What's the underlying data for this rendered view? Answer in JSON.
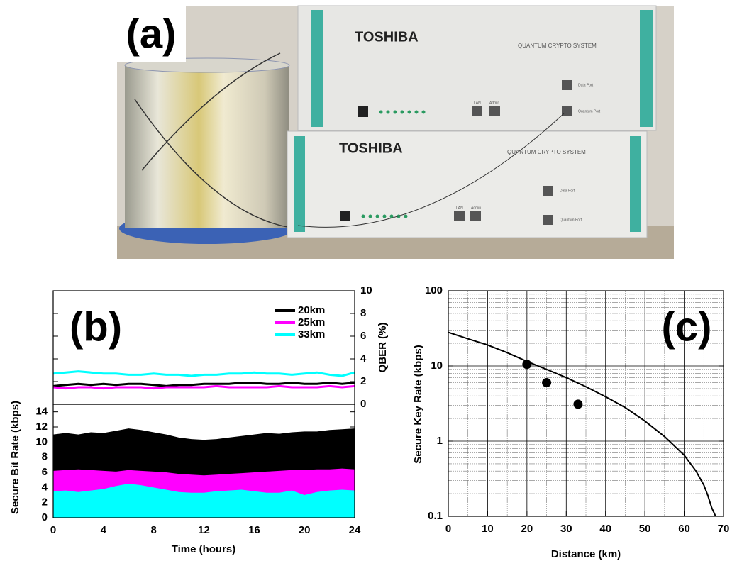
{
  "photo": {
    "panel_label": "(a)",
    "units": [
      {
        "brand": "TOSHIBA",
        "product": "QUANTUM CRYPTO SYSTEM",
        "data_port": "Data Port",
        "quantum_port": "Quantum Port",
        "lan": "LAN",
        "admin": "Admin"
      },
      {
        "brand": "TOSHIBA",
        "product": "QUANTUM CRYPTO SYSTEM",
        "data_port": "Data Port",
        "quantum_port": "Quantum Port",
        "lan": "LAN",
        "admin": "Admin"
      }
    ]
  },
  "chart_data": [
    {
      "type": "line",
      "annotation": "(b)",
      "ylabel": "QBER (%)",
      "y_axis_side": "right",
      "xlim": [
        0,
        24
      ],
      "ylim": [
        0,
        10
      ],
      "yticks": [
        0,
        2,
        4,
        6,
        8,
        10
      ],
      "legend": "upper right",
      "x": [
        0,
        1,
        2,
        3,
        4,
        5,
        6,
        7,
        8,
        9,
        10,
        11,
        12,
        13,
        14,
        15,
        16,
        17,
        18,
        19,
        20,
        21,
        22,
        23,
        24
      ],
      "series": [
        {
          "name": "20km",
          "color": "#000000",
          "values": [
            1.6,
            1.7,
            1.8,
            1.7,
            1.8,
            1.7,
            1.8,
            1.8,
            1.7,
            1.6,
            1.7,
            1.7,
            1.8,
            1.8,
            1.8,
            1.9,
            1.9,
            1.8,
            1.8,
            1.9,
            1.8,
            1.8,
            1.9,
            1.8,
            1.9
          ]
        },
        {
          "name": "25km",
          "color": "#ff00ff",
          "values": [
            1.5,
            1.4,
            1.5,
            1.5,
            1.4,
            1.5,
            1.5,
            1.5,
            1.4,
            1.5,
            1.5,
            1.5,
            1.5,
            1.6,
            1.5,
            1.5,
            1.5,
            1.5,
            1.6,
            1.5,
            1.5,
            1.5,
            1.6,
            1.5,
            1.6
          ]
        },
        {
          "name": "33km",
          "color": "#00ffff",
          "values": [
            2.7,
            2.8,
            2.9,
            2.8,
            2.7,
            2.7,
            2.6,
            2.6,
            2.7,
            2.6,
            2.6,
            2.5,
            2.6,
            2.6,
            2.7,
            2.7,
            2.8,
            2.7,
            2.7,
            2.6,
            2.7,
            2.8,
            2.6,
            2.5,
            2.8
          ]
        }
      ]
    },
    {
      "type": "area",
      "xlabel": "Time (hours)",
      "ylabel": "Secure Bit Rate (kbps)",
      "xlim": [
        0,
        24
      ],
      "xticks": [
        0,
        4,
        8,
        12,
        16,
        20,
        24
      ],
      "ylim": [
        0,
        15
      ],
      "yticks": [
        0,
        2,
        4,
        6,
        8,
        10,
        12,
        14
      ],
      "x": [
        0,
        1,
        2,
        3,
        4,
        5,
        6,
        7,
        8,
        9,
        10,
        11,
        12,
        13,
        14,
        15,
        16,
        17,
        18,
        19,
        20,
        21,
        22,
        23,
        24
      ],
      "series": [
        {
          "color": "#000000",
          "values": [
            11,
            11.2,
            11,
            11.3,
            11.2,
            11.5,
            11.8,
            11.6,
            11.3,
            11,
            10.6,
            10.4,
            10.3,
            10.4,
            10.6,
            10.8,
            11,
            11.2,
            11.1,
            11.3,
            11.4,
            11.4,
            11.6,
            11.7,
            11.8
          ]
        },
        {
          "color": "#ff00ff",
          "values": [
            6.2,
            6.3,
            6.4,
            6.3,
            6.2,
            6.1,
            6.3,
            6.2,
            6.1,
            6,
            5.8,
            5.7,
            5.6,
            5.7,
            5.8,
            5.9,
            6,
            6.1,
            6.2,
            6.3,
            6.3,
            6.4,
            6.4,
            6.5,
            6.4
          ]
        },
        {
          "color": "#00ffff",
          "values": [
            3.5,
            3.6,
            3.4,
            3.6,
            3.8,
            4.2,
            4.5,
            4.3,
            4,
            3.7,
            3.4,
            3.3,
            3.3,
            3.5,
            3.6,
            3.7,
            3.5,
            3.3,
            3.3,
            3.6,
            3,
            3.4,
            3.6,
            3.7,
            3.6
          ]
        }
      ]
    },
    {
      "type": "line",
      "annotation": "(c)",
      "xlabel": "Distance (km)",
      "ylabel": "Secure Key Rate (kbps)",
      "xlim": [
        0,
        70
      ],
      "xticks": [
        0,
        10,
        20,
        30,
        40,
        50,
        60,
        70
      ],
      "ylim": [
        0.1,
        100
      ],
      "yticks": [
        0.1,
        1,
        10,
        100
      ],
      "log_y": true,
      "grid": true,
      "minor_grid": true,
      "series": [
        {
          "color": "#000000",
          "x": [
            0,
            5,
            10,
            15,
            20,
            25,
            30,
            35,
            40,
            45,
            50,
            55,
            60,
            63,
            65,
            66,
            67,
            68
          ],
          "values": [
            28,
            23,
            19,
            15,
            11.5,
            9,
            7,
            5.3,
            3.9,
            2.8,
            1.85,
            1.15,
            0.65,
            0.4,
            0.26,
            0.19,
            0.13,
            0.1
          ]
        },
        {
          "color": "#000000",
          "x": [
            20,
            25,
            33
          ],
          "values": [
            10.5,
            6,
            3.1
          ],
          "marker": "circle",
          "line": false
        }
      ]
    }
  ]
}
